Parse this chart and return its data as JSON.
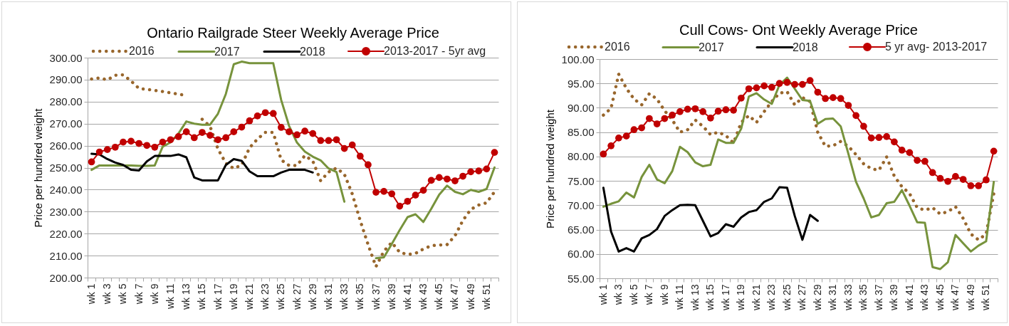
{
  "chart_data": [
    {
      "type": "line",
      "title": "Ontario Railgrade Steer Weekly Average Price",
      "ylabel": "Price per hundred weight",
      "categories": [
        "wk 1",
        null,
        "wk 3",
        null,
        "wk 5",
        null,
        "wk 7",
        null,
        "wk 9",
        null,
        "wk 11",
        null,
        "wk 13",
        null,
        "wk 15",
        null,
        "wk 17",
        null,
        "wk 19",
        null,
        "wk 21",
        null,
        "wk 23",
        null,
        "wk 25",
        null,
        "wk 27",
        null,
        "wk 29",
        null,
        "wk 31",
        null,
        "wk 33",
        null,
        "wk 35",
        null,
        "wk 37",
        null,
        "wk 39",
        null,
        "wk 41",
        null,
        "wk 43",
        null,
        "wk 45",
        null,
        "wk 47",
        null,
        "wk 49",
        null,
        "wk 51",
        null
      ],
      "series": [
        {
          "name": "2016",
          "color": "#98662c",
          "line_style": "dotted",
          "values": [
            290.3,
            290.8,
            289.9,
            292.0,
            292.2,
            289.4,
            286.0,
            285.6,
            285.1,
            284.6,
            284.0,
            283.4,
            282.8,
            null,
            272.0,
            268.8,
            258.5,
            252.0,
            249.6,
            251.2,
            259.0,
            263.0,
            266.0,
            266.0,
            253.5,
            251.0,
            251.0,
            255.5,
            253.0,
            244.0,
            248.0,
            249.8,
            247.0,
            238.0,
            226.0,
            215.0,
            205.0,
            212.0,
            216.0,
            211.5,
            210.5,
            211.0,
            213.0,
            214.5,
            214.8,
            215.0,
            219.0,
            226.0,
            231.0,
            233.0,
            234.0,
            239.0
          ]
        },
        {
          "name": "2017",
          "color": "#77933c",
          "line_style": "solid",
          "values": [
            249.0,
            251.0,
            251.0,
            251.0,
            251.0,
            251.0,
            250.8,
            250.8,
            251.0,
            259.5,
            261.5,
            265.5,
            271.0,
            270.0,
            269.5,
            269.5,
            274.5,
            283.5,
            297.0,
            298.2,
            297.5,
            297.5,
            297.5,
            297.5,
            280.8,
            269.0,
            261.4,
            257.3,
            255.0,
            253.3,
            249.6,
            248.0,
            234.5,
            null,
            null,
            null,
            208.8,
            209.2,
            215.3,
            221.6,
            227.5,
            228.8,
            225.3,
            231.3,
            237.7,
            241.8,
            239.0,
            237.9,
            239.9,
            239.0,
            240.3,
            250.1
          ]
        },
        {
          "name": "2018",
          "color": "#000000",
          "line_style": "solid",
          "values": [
            256.3,
            256.0,
            253.9,
            252.3,
            251.2,
            249.0,
            248.7,
            252.8,
            255.3,
            255.3,
            255.3,
            256.0,
            254.7,
            245.5,
            244.2,
            244.2,
            244.2,
            251.2,
            253.9,
            253.1,
            248.3,
            246.1,
            246.1,
            246.1,
            247.8,
            249.0,
            249.0,
            249.0,
            247.8,
            null,
            null,
            null,
            null,
            null,
            null,
            null,
            null,
            null,
            null,
            null,
            null,
            null,
            null,
            null,
            null,
            null,
            null,
            null,
            null,
            null,
            null,
            null
          ]
        },
        {
          "name": "2013-2017 - 5yr avg",
          "color": "#c00000",
          "line_style": "solid",
          "marker": "circle",
          "values": [
            252.6,
            257.1,
            258.2,
            259.3,
            261.6,
            262.0,
            261.0,
            260.1,
            259.3,
            261.6,
            262.7,
            264.1,
            266.3,
            263.6,
            266.0,
            264.7,
            262.7,
            263.6,
            266.3,
            268.4,
            271.3,
            273.5,
            275.0,
            274.6,
            268.3,
            266.3,
            264.9,
            266.6,
            265.5,
            262.3,
            262.3,
            262.7,
            258.7,
            260.3,
            255.2,
            251.3,
            238.8,
            239.2,
            238.1,
            232.5,
            234.7,
            237.5,
            239.7,
            244.2,
            245.5,
            244.8,
            244.0,
            246.1,
            248.1,
            248.5,
            249.4,
            256.9
          ]
        }
      ],
      "ylim": [
        200,
        300
      ],
      "yticks": [
        {
          "value": 200,
          "label": "200.00"
        },
        {
          "value": 210,
          "label": "210.00"
        },
        {
          "value": 220,
          "label": "220.00"
        },
        {
          "value": 230,
          "label": "230.00"
        },
        {
          "value": 240,
          "label": "240.00"
        },
        {
          "value": 250,
          "label": "250.00"
        },
        {
          "value": 260,
          "label": "260.00"
        },
        {
          "value": 270,
          "label": "270.00"
        },
        {
          "value": 280,
          "label": "280.00"
        },
        {
          "value": 290,
          "label": "290.00"
        },
        {
          "value": 300,
          "label": "300.00"
        }
      ],
      "grid": "y",
      "legend": "top"
    },
    {
      "type": "line",
      "title": "Cull Cows- Ont Weekly Average Price",
      "ylabel": "Price per hundred weight",
      "categories": [
        "wk 1",
        null,
        "wk 3",
        null,
        "wk 5",
        null,
        "wk 7",
        null,
        "wk 9",
        null,
        "wk 11",
        null,
        "wk 13",
        null,
        "wk 15",
        null,
        "wk 17",
        null,
        "wk 19",
        null,
        "wk 21",
        null,
        "wk 23",
        null,
        "wk 25",
        null,
        "wk 27",
        null,
        "wk 29",
        null,
        "wk 31",
        null,
        "wk 33",
        null,
        "wk 35",
        null,
        "wk 37",
        null,
        "wk 39",
        null,
        "wk 41",
        null,
        "wk 43",
        null,
        "wk 45",
        null,
        "wk 47",
        null,
        "wk 49",
        null,
        "wk 51",
        null
      ],
      "series": [
        {
          "name": "2016",
          "color": "#98662c",
          "line_style": "dotted",
          "values": [
            88.5,
            89.9,
            96.9,
            94.0,
            91.8,
            90.6,
            92.9,
            91.8,
            89.4,
            87.5,
            85.0,
            85.5,
            87.5,
            86.2,
            84.5,
            85.0,
            84.3,
            82.8,
            87.0,
            88.4,
            87.0,
            89.2,
            91.3,
            93.0,
            93.3,
            90.6,
            92.1,
            91.3,
            85.0,
            82.1,
            82.2,
            83.1,
            82.1,
            80.4,
            78.5,
            77.5,
            77.2,
            79.9,
            76.0,
            73.8,
            72.4,
            69.5,
            69.0,
            69.5,
            68.2,
            68.7,
            69.7,
            67.3,
            64.1,
            62.9,
            64.1,
            72.4
          ]
        },
        {
          "name": "2017",
          "color": "#77933c",
          "line_style": "solid",
          "values": [
            69.7,
            70.3,
            70.8,
            72.6,
            71.6,
            75.8,
            78.3,
            75.3,
            74.5,
            77.0,
            82.0,
            80.9,
            78.8,
            78.0,
            78.3,
            83.5,
            82.8,
            82.8,
            85.7,
            92.3,
            93.0,
            91.7,
            90.8,
            94.7,
            96.2,
            93.9,
            91.6,
            91.4,
            86.7,
            87.7,
            87.8,
            86.2,
            80.6,
            74.8,
            71.4,
            67.5,
            68.0,
            70.4,
            70.7,
            73.1,
            69.9,
            66.5,
            66.4,
            57.3,
            56.9,
            58.3,
            63.9,
            62.2,
            60.5,
            61.7,
            62.6,
            74.8
          ]
        },
        {
          "name": "2018",
          "color": "#000000",
          "line_style": "solid",
          "values": [
            73.6,
            64.6,
            60.5,
            61.2,
            60.5,
            63.2,
            63.9,
            65.1,
            67.8,
            69.0,
            70.0,
            70.1,
            70.0,
            66.8,
            63.6,
            64.3,
            66.1,
            65.6,
            67.5,
            68.6,
            69.0,
            70.7,
            71.4,
            73.7,
            73.6,
            67.8,
            62.9,
            68.0,
            66.8,
            null,
            null,
            null,
            null,
            null,
            null,
            null,
            null,
            null,
            null,
            null,
            null,
            null,
            null,
            null,
            null,
            null,
            null,
            null,
            null,
            null,
            null,
            null
          ]
        },
        {
          "name": "5 yr avg- 2013-2017",
          "color": "#c00000",
          "line_style": "solid",
          "marker": "circle",
          "values": [
            80.5,
            82.2,
            83.8,
            84.2,
            85.5,
            85.9,
            87.8,
            86.7,
            87.8,
            88.5,
            89.2,
            89.7,
            89.8,
            89.2,
            87.9,
            89.3,
            89.6,
            89.5,
            92.0,
            93.9,
            94.1,
            94.5,
            94.2,
            95.0,
            95.2,
            94.8,
            94.8,
            95.6,
            93.2,
            91.9,
            92.1,
            91.9,
            90.5,
            88.4,
            86.2,
            83.8,
            83.9,
            84.1,
            83.0,
            81.3,
            80.8,
            79.2,
            79.0,
            76.7,
            75.5,
            74.9,
            75.9,
            75.3,
            74.0,
            74.0,
            75.2,
            81.1
          ]
        }
      ],
      "ylim": [
        55,
        100
      ],
      "yticks": [
        {
          "value": 55,
          "label": "55.00"
        },
        {
          "value": 60,
          "label": "60.00"
        },
        {
          "value": 65,
          "label": "65.00"
        },
        {
          "value": 70,
          "label": "70.00"
        },
        {
          "value": 75,
          "label": "75.00"
        },
        {
          "value": 80,
          "label": "80.00"
        },
        {
          "value": 85,
          "label": "85.00"
        },
        {
          "value": 90,
          "label": "90.00"
        },
        {
          "value": 95,
          "label": "95.00"
        },
        {
          "value": 100,
          "label": "100.00"
        }
      ],
      "grid": "y",
      "legend": "top"
    }
  ]
}
